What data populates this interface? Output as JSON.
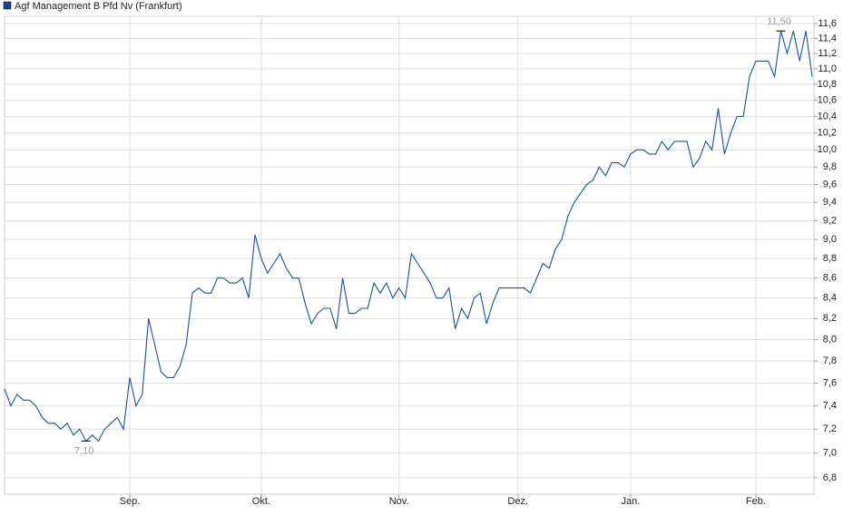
{
  "chart_data": {
    "type": "line",
    "log_scale": true,
    "grid": true,
    "series": [
      {
        "name": "Agf Management B Pfd Nv (Frankfurt)",
        "color": "#1c4f9c",
        "values": [
          7.55,
          7.4,
          7.5,
          7.45,
          7.45,
          7.4,
          7.3,
          7.25,
          7.25,
          7.2,
          7.25,
          7.15,
          7.2,
          7.1,
          7.15,
          7.1,
          7.2,
          7.25,
          7.3,
          7.2,
          7.65,
          7.4,
          7.5,
          8.2,
          7.95,
          7.7,
          7.65,
          7.65,
          7.75,
          7.95,
          8.45,
          8.5,
          8.45,
          8.45,
          8.6,
          8.6,
          8.55,
          8.55,
          8.6,
          8.4,
          9.05,
          8.8,
          8.65,
          8.75,
          8.85,
          8.7,
          8.6,
          8.6,
          8.35,
          8.15,
          8.25,
          8.3,
          8.3,
          8.1,
          8.6,
          8.25,
          8.25,
          8.3,
          8.3,
          8.55,
          8.45,
          8.55,
          8.4,
          8.5,
          8.4,
          8.85,
          8.75,
          8.65,
          8.55,
          8.4,
          8.4,
          8.5,
          8.1,
          8.3,
          8.2,
          8.4,
          8.45,
          8.15,
          8.35,
          8.5,
          8.5,
          8.5,
          8.5,
          8.5,
          8.45,
          8.6,
          8.75,
          8.7,
          8.9,
          9.0,
          9.25,
          9.4,
          9.5,
          9.6,
          9.65,
          9.8,
          9.7,
          9.85,
          9.85,
          9.8,
          9.95,
          10.0,
          10.0,
          9.95,
          9.95,
          10.1,
          10.0,
          10.1,
          10.1,
          10.1,
          9.8,
          9.9,
          10.1,
          10.0,
          10.5,
          9.95,
          10.2,
          10.4,
          10.4,
          10.9,
          11.1,
          11.1,
          11.1,
          10.9,
          11.5,
          11.2,
          11.5,
          11.1,
          11.5,
          10.9
        ]
      }
    ],
    "categories": [
      null,
      null,
      null,
      null,
      null,
      null,
      null,
      null,
      null,
      null,
      null,
      null,
      null,
      null,
      null,
      null,
      null,
      null,
      null,
      null,
      "Sep.",
      null,
      null,
      null,
      null,
      null,
      null,
      null,
      null,
      null,
      null,
      null,
      null,
      null,
      null,
      null,
      null,
      null,
      null,
      null,
      null,
      "Okt.",
      null,
      null,
      null,
      null,
      null,
      null,
      null,
      null,
      null,
      null,
      null,
      null,
      null,
      null,
      null,
      null,
      null,
      null,
      null,
      null,
      null,
      "Nov.",
      null,
      null,
      null,
      null,
      null,
      null,
      null,
      null,
      null,
      null,
      null,
      null,
      null,
      null,
      null,
      null,
      null,
      null,
      "Dez.",
      null,
      null,
      null,
      null,
      null,
      null,
      null,
      null,
      null,
      null,
      null,
      null,
      null,
      null,
      null,
      null,
      null,
      "Jan.",
      null,
      null,
      null,
      null,
      null,
      null,
      null,
      null,
      null,
      null,
      null,
      null,
      null,
      null,
      null,
      null,
      null,
      null,
      null,
      "Feb.",
      null,
      null,
      null,
      null,
      null,
      null,
      null,
      null,
      null
    ],
    "ylim": [
      6.67,
      11.7
    ],
    "yticks": [
      {
        "value": 6.8,
        "label": "6,8"
      },
      {
        "value": 7.0,
        "label": "7,0"
      },
      {
        "value": 7.2,
        "label": "7,2"
      },
      {
        "value": 7.4,
        "label": "7,4"
      },
      {
        "value": 7.6,
        "label": "7,6"
      },
      {
        "value": 7.8,
        "label": "7,8"
      },
      {
        "value": 8.0,
        "label": "8,0"
      },
      {
        "value": 8.2,
        "label": "8,2"
      },
      {
        "value": 8.4,
        "label": "8,4"
      },
      {
        "value": 8.6,
        "label": "8,6"
      },
      {
        "value": 8.8,
        "label": "8,8"
      },
      {
        "value": 9.0,
        "label": "9,0"
      },
      {
        "value": 9.2,
        "label": "9,2"
      },
      {
        "value": 9.4,
        "label": "9,4"
      },
      {
        "value": 9.6,
        "label": "9,6"
      },
      {
        "value": 9.8,
        "label": "9,8"
      },
      {
        "value": 10.0,
        "label": "10,0"
      },
      {
        "value": 10.2,
        "label": "10,2"
      },
      {
        "value": 10.4,
        "label": "10,4"
      },
      {
        "value": 10.6,
        "label": "10,6"
      },
      {
        "value": 10.8,
        "label": "10,8"
      },
      {
        "value": 11.0,
        "label": "11,0"
      },
      {
        "value": 11.2,
        "label": "11,2"
      },
      {
        "value": 11.4,
        "label": "11,4"
      },
      {
        "value": 11.6,
        "label": "11,6"
      }
    ],
    "annotations": [
      {
        "label": "11,50",
        "value": 11.5
      },
      {
        "label": "7,10",
        "value": 7.1
      }
    ]
  }
}
